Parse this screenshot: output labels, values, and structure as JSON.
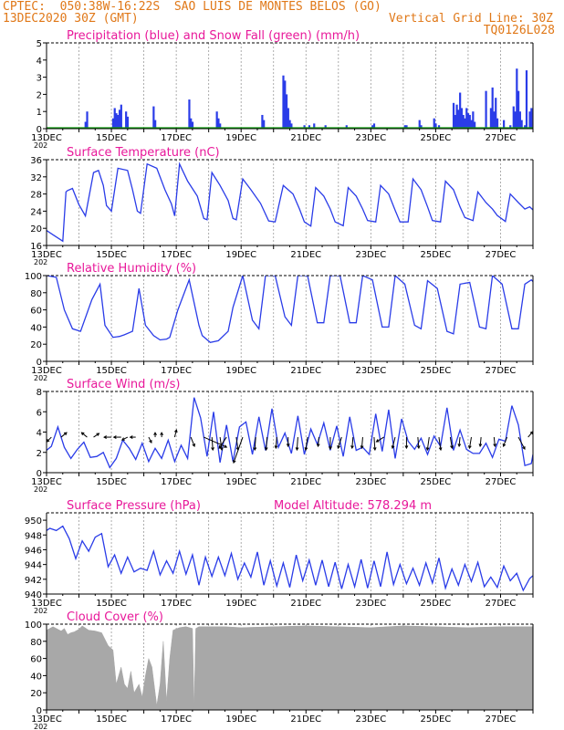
{
  "header": {
    "line1_left": "CPTEC:  050:38W-16:22S  SAO LUIS DE MONTES BELOS (GO)",
    "line2_left": "13DEC2020 30Z (GMT)",
    "line2_right": "Vertical Grid Line: 30Z",
    "line3_right": "TQ0126L028",
    "color": "#e07818"
  },
  "x_ticks": [
    "13DEC",
    "15DEC",
    "17DEC",
    "19DEC",
    "21DEC",
    "23DEC",
    "25DEC",
    "27DEC"
  ],
  "year_stub": "202",
  "colors": {
    "title": "#e8189a",
    "line": "#2a3ce8",
    "snow": "#10a010",
    "cloud": "#a8a8a8",
    "grid": "#9a9a9a"
  },
  "chart_data": [
    {
      "type": "bar",
      "title": "Precipitation (blue) and Snow Fall (green) (mm/h)",
      "ylim": [
        0,
        5
      ],
      "yticks": [
        "0",
        "1",
        "2",
        "3",
        "4",
        "5"
      ],
      "x_unit": "days since 13DEC2020 00Z",
      "series": [
        {
          "name": "Precipitation",
          "x": [
            1.2,
            1.25,
            2.05,
            2.1,
            2.15,
            2.2,
            2.25,
            2.3,
            2.45,
            2.5,
            3.3,
            3.35,
            4.4,
            4.45,
            4.5,
            5.25,
            5.3,
            5.35,
            6.65,
            6.7,
            7.3,
            7.35,
            7.4,
            7.45,
            7.5,
            7.55,
            7.95,
            8.1,
            8.25,
            8.6,
            9.25,
            10.05,
            10.1,
            11.05,
            11.1,
            11.5,
            11.55,
            11.95,
            12.0,
            12.1,
            12.55,
            12.6,
            12.65,
            12.7,
            12.75,
            12.8,
            12.85,
            12.9,
            12.95,
            13.0,
            13.05,
            13.1,
            13.15,
            13.2,
            13.55,
            13.7,
            13.75,
            13.8,
            13.85,
            13.9,
            14.1,
            14.3,
            14.4,
            14.45,
            14.5,
            14.55,
            14.6,
            14.65,
            14.75,
            14.8,
            14.9,
            14.95
          ],
          "values": [
            0.4,
            1.0,
            0.6,
            1.2,
            0.9,
            0.8,
            1.1,
            1.4,
            1.0,
            0.7,
            1.3,
            0.5,
            1.7,
            0.6,
            0.4,
            1.0,
            0.6,
            0.3,
            0.8,
            0.5,
            3.1,
            2.8,
            2.0,
            1.2,
            0.5,
            0.3,
            0.2,
            0.2,
            0.3,
            0.2,
            0.2,
            0.2,
            0.3,
            0.2,
            0.2,
            0.5,
            0.2,
            0.6,
            0.3,
            0.2,
            1.5,
            0.8,
            1.4,
            1.1,
            2.1,
            1.2,
            0.8,
            0.6,
            1.2,
            0.9,
            0.8,
            0.5,
            1.0,
            0.4,
            2.2,
            1.2,
            2.4,
            1.0,
            1.8,
            0.6,
            0.5,
            0.2,
            1.3,
            1.0,
            3.5,
            2.2,
            1.0,
            0.5,
            0.2,
            3.4,
            1.0,
            1.2
          ]
        },
        {
          "name": "Snow Fall",
          "x": [
            0,
            15
          ],
          "values": [
            0,
            0
          ]
        }
      ]
    },
    {
      "type": "line",
      "title": "Surface Temperature (nC)",
      "ylim": [
        16,
        36
      ],
      "yticks": [
        "16",
        "20",
        "24",
        "28",
        "32",
        "36"
      ],
      "x": [
        0,
        0.2,
        0.4,
        0.5,
        0.6,
        0.65,
        0.8,
        1.0,
        1.2,
        1.45,
        1.6,
        1.75,
        1.85,
        2.0,
        2.2,
        2.5,
        2.65,
        2.8,
        2.9,
        3.1,
        3.4,
        3.65,
        3.85,
        3.95,
        4.1,
        4.35,
        4.65,
        4.85,
        4.95,
        5.1,
        5.35,
        5.6,
        5.75,
        5.85,
        6.05,
        6.3,
        6.6,
        6.85,
        7.05,
        7.3,
        7.6,
        7.8,
        7.95,
        8.15,
        8.3,
        8.55,
        8.75,
        8.9,
        9.15,
        9.3,
        9.55,
        9.75,
        9.9,
        10.15,
        10.3,
        10.55,
        10.75,
        10.9,
        11.15,
        11.3,
        11.55,
        11.75,
        11.9,
        12.15,
        12.3,
        12.55,
        12.75,
        12.9,
        13.15,
        13.3,
        13.55,
        13.75,
        13.9,
        14.15,
        14.3,
        14.55,
        14.75,
        14.9,
        15.0
      ],
      "values": [
        19.5,
        18.5,
        17.5,
        17,
        28.5,
        28.8,
        29.3,
        25.5,
        22.9,
        33,
        33.5,
        30,
        25.3,
        24,
        34,
        33.5,
        29,
        24,
        23.5,
        35,
        34,
        29,
        25.7,
        22.9,
        35,
        31,
        27.5,
        22.3,
        22,
        33,
        30,
        26.5,
        22.3,
        22,
        31.5,
        29,
        25.8,
        21.7,
        21.5,
        30,
        28,
        24.5,
        21.5,
        20.5,
        29.5,
        27.5,
        24.5,
        21.5,
        20.6,
        29.5,
        27.5,
        24.5,
        21.8,
        21.5,
        30,
        28,
        24.2,
        21.5,
        21.5,
        31.5,
        29,
        25,
        21.8,
        21.5,
        31,
        29,
        25,
        22.5,
        21.8,
        28.5,
        26,
        24.5,
        23,
        21.6,
        28,
        26,
        24.5,
        25,
        24.3
      ]
    },
    {
      "type": "line",
      "title": "Relative Humidity (%)",
      "ylim": [
        0,
        100
      ],
      "yticks": [
        "0",
        "20",
        "40",
        "60",
        "80",
        "100"
      ],
      "x": [
        0,
        0.3,
        0.55,
        0.8,
        1.05,
        1.4,
        1.65,
        1.8,
        2.05,
        2.25,
        2.4,
        2.65,
        2.85,
        3.05,
        3.3,
        3.5,
        3.7,
        3.8,
        4.05,
        4.4,
        4.7,
        4.8,
        5.05,
        5.3,
        5.6,
        5.75,
        6.05,
        6.35,
        6.55,
        6.75,
        7.05,
        7.35,
        7.55,
        7.75,
        8.05,
        8.35,
        8.55,
        8.75,
        9.05,
        9.35,
        9.55,
        9.75,
        10.05,
        10.35,
        10.55,
        10.75,
        11.05,
        11.35,
        11.55,
        11.75,
        12.05,
        12.35,
        12.55,
        12.75,
        13.05,
        13.35,
        13.55,
        13.75,
        14.05,
        14.35,
        14.55,
        14.75,
        14.95,
        15.0
      ],
      "values": [
        100,
        98,
        60,
        38,
        35,
        72,
        90,
        42,
        28,
        29,
        31,
        35,
        85,
        42,
        30,
        25,
        26,
        28,
        60,
        95,
        42,
        30,
        22,
        24,
        35,
        63,
        100,
        48,
        38,
        100,
        100,
        52,
        42,
        100,
        100,
        45,
        45,
        100,
        100,
        45,
        45,
        100,
        95,
        40,
        40,
        100,
        90,
        42,
        38,
        94,
        85,
        35,
        32,
        90,
        92,
        40,
        38,
        100,
        90,
        38,
        38,
        90,
        95,
        93
      ]
    },
    {
      "type": "line",
      "title": "Surface Wind (m/s)",
      "ylim": [
        0,
        8
      ],
      "yticks": [
        "0",
        "2",
        "4",
        "6",
        "8"
      ],
      "x": [
        0,
        0.15,
        0.35,
        0.55,
        0.75,
        0.95,
        1.15,
        1.35,
        1.55,
        1.75,
        1.95,
        2.15,
        2.35,
        2.55,
        2.75,
        2.95,
        3.15,
        3.35,
        3.55,
        3.75,
        3.95,
        4.15,
        4.35,
        4.55,
        4.75,
        4.95,
        5.15,
        5.35,
        5.55,
        5.75,
        5.95,
        6.15,
        6.35,
        6.55,
        6.75,
        6.95,
        7.15,
        7.35,
        7.55,
        7.75,
        7.95,
        8.15,
        8.35,
        8.55,
        8.75,
        8.95,
        9.15,
        9.35,
        9.55,
        9.75,
        9.95,
        10.15,
        10.35,
        10.55,
        10.75,
        10.95,
        11.15,
        11.35,
        11.55,
        11.75,
        11.95,
        12.15,
        12.35,
        12.55,
        12.75,
        12.95,
        13.15,
        13.35,
        13.55,
        13.75,
        13.95,
        14.15,
        14.35,
        14.55,
        14.75,
        14.95,
        15.0
      ],
      "values": [
        2.2,
        2.6,
        4.5,
        2.5,
        1.4,
        2.3,
        3.0,
        1.5,
        1.6,
        2.0,
        0.5,
        1.4,
        3.2,
        2.4,
        1.3,
        2.9,
        1.1,
        2.4,
        1.4,
        3.2,
        1.1,
        2.7,
        1.4,
        7.4,
        5.4,
        1.6,
        6.0,
        1.0,
        4.7,
        1.1,
        4.5,
        5.0,
        1.8,
        5.5,
        2.2,
        6.3,
        2.5,
        3.9,
        1.9,
        5.6,
        1.8,
        4.3,
        2.8,
        4.9,
        2.2,
        4.6,
        1.6,
        5.5,
        2.2,
        2.5,
        1.8,
        5.8,
        2.1,
        6.2,
        1.4,
        5.3,
        3.1,
        2.3,
        3.4,
        1.8,
        3.6,
        2.6,
        6.4,
        2.2,
        4.2,
        2.3,
        1.9,
        1.9,
        2.9,
        1.5,
        3.3,
        3.1,
        6.6,
        4.7,
        0.7,
        0.9,
        1.8
      ],
      "arrows": [
        {
          "x": 0.15,
          "dx": -5,
          "dy": 5
        },
        {
          "x": 0.45,
          "dx": 6,
          "dy": -5
        },
        {
          "x": 1.25,
          "dx": -6,
          "dy": -5
        },
        {
          "x": 1.45,
          "dx": 6,
          "dy": -4
        },
        {
          "x": 2.0,
          "dx": -8,
          "dy": 0
        },
        {
          "x": 2.3,
          "dx": -8,
          "dy": 0
        },
        {
          "x": 2.5,
          "dx": -6,
          "dy": 3
        },
        {
          "x": 2.75,
          "dx": -6,
          "dy": 0
        },
        {
          "x": 3.15,
          "dx": 3,
          "dy": 6
        },
        {
          "x": 3.35,
          "dx": 0,
          "dy": -5
        },
        {
          "x": 3.55,
          "dx": 0,
          "dy": -5
        },
        {
          "x": 3.95,
          "dx": 2,
          "dy": -8
        },
        {
          "x": 4.45,
          "dx": 4,
          "dy": 10
        },
        {
          "x": 4.85,
          "dx": 25,
          "dy": 11
        },
        {
          "x": 5.1,
          "dx": 1,
          "dy": 14
        },
        {
          "x": 5.35,
          "dx": 2,
          "dy": 14
        },
        {
          "x": 5.55,
          "dx": -8,
          "dy": 12
        },
        {
          "x": 5.85,
          "dx": 2,
          "dy": 14
        },
        {
          "x": 6.05,
          "dx": -10,
          "dy": 28
        },
        {
          "x": 6.45,
          "dx": -1,
          "dy": 14
        },
        {
          "x": 6.8,
          "dx": -1,
          "dy": 14
        },
        {
          "x": 7.1,
          "dx": -1,
          "dy": 12
        },
        {
          "x": 7.45,
          "dx": 0,
          "dy": 10
        },
        {
          "x": 7.75,
          "dx": -1,
          "dy": 14
        },
        {
          "x": 8.05,
          "dx": -2,
          "dy": 14
        },
        {
          "x": 8.4,
          "dx": -1,
          "dy": 10
        },
        {
          "x": 8.75,
          "dx": 0,
          "dy": 13
        },
        {
          "x": 9.1,
          "dx": -4,
          "dy": 12
        },
        {
          "x": 9.45,
          "dx": -1,
          "dy": 12
        },
        {
          "x": 9.75,
          "dx": -1,
          "dy": 12
        },
        {
          "x": 10.1,
          "dx": 1,
          "dy": 14
        },
        {
          "x": 10.4,
          "dx": -8,
          "dy": 5
        },
        {
          "x": 10.75,
          "dx": -3,
          "dy": 12
        },
        {
          "x": 11.1,
          "dx": 0,
          "dy": 12
        },
        {
          "x": 11.45,
          "dx": 1,
          "dy": 12
        },
        {
          "x": 11.8,
          "dx": -2,
          "dy": 14
        },
        {
          "x": 12.1,
          "dx": 2,
          "dy": 14
        },
        {
          "x": 12.45,
          "dx": 2,
          "dy": 12
        },
        {
          "x": 12.75,
          "dx": -1,
          "dy": 10
        },
        {
          "x": 13.1,
          "dx": -2,
          "dy": 12
        },
        {
          "x": 13.4,
          "dx": -1,
          "dy": 10
        },
        {
          "x": 13.8,
          "dx": 1,
          "dy": 10
        },
        {
          "x": 14.2,
          "dx": -4,
          "dy": 10
        },
        {
          "x": 14.55,
          "dx": 7,
          "dy": 13
        },
        {
          "x": 14.85,
          "dx": 5,
          "dy": -6
        }
      ]
    },
    {
      "type": "line",
      "title": "Surface Pressure (hPa)",
      "annotation": "Model Altitude: 578.294 m",
      "ylim": [
        940,
        951
      ],
      "yticks": [
        "940",
        "942",
        "944",
        "946",
        "948",
        "950"
      ],
      "x": [
        0,
        0.1,
        0.3,
        0.5,
        0.7,
        0.9,
        1.1,
        1.3,
        1.5,
        1.7,
        1.9,
        2.1,
        2.3,
        2.5,
        2.7,
        2.9,
        3.1,
        3.3,
        3.5,
        3.7,
        3.9,
        4.1,
        4.3,
        4.5,
        4.7,
        4.9,
        5.1,
        5.3,
        5.5,
        5.7,
        5.9,
        6.1,
        6.3,
        6.5,
        6.7,
        6.9,
        7.1,
        7.3,
        7.5,
        7.7,
        7.9,
        8.1,
        8.3,
        8.5,
        8.7,
        8.9,
        9.1,
        9.3,
        9.5,
        9.7,
        9.9,
        10.1,
        10.3,
        10.5,
        10.7,
        10.9,
        11.1,
        11.3,
        11.5,
        11.7,
        11.9,
        12.1,
        12.3,
        12.5,
        12.7,
        12.9,
        13.1,
        13.3,
        13.5,
        13.7,
        13.9,
        14.1,
        14.3,
        14.5,
        14.7,
        14.9,
        15.0
      ],
      "values": [
        948.6,
        948.9,
        948.6,
        949.2,
        947.5,
        944.8,
        947.2,
        945.8,
        947.7,
        948.2,
        943.7,
        945.3,
        942.8,
        945,
        943,
        943.5,
        943.2,
        945.8,
        942.6,
        944.5,
        942.8,
        945.8,
        942.7,
        945.3,
        941.2,
        945,
        942.4,
        945,
        942.5,
        945.5,
        942,
        944.2,
        942.3,
        945.7,
        941.2,
        944.5,
        941.1,
        944.2,
        940.9,
        945.3,
        941.8,
        944.6,
        941.2,
        944.6,
        941,
        944.3,
        940.7,
        944,
        941,
        944.7,
        940.8,
        944.5,
        941,
        945.7,
        941.3,
        944,
        941.4,
        943.5,
        941.2,
        944.2,
        941.5,
        944.9,
        940.8,
        943.4,
        941.2,
        944,
        941.7,
        944.3,
        941,
        942.3,
        940.9,
        943.8,
        941.8,
        942.8,
        940.5,
        942.1,
        942.5
      ]
    },
    {
      "type": "area",
      "title": "Cloud Cover (%)",
      "ylim": [
        0,
        100
      ],
      "yticks": [
        "0",
        "20",
        "40",
        "60",
        "80",
        "100"
      ],
      "x": [
        0,
        0.2,
        0.45,
        0.55,
        0.65,
        0.75,
        0.85,
        1.0,
        1.1,
        1.3,
        1.5,
        1.7,
        1.9,
        2.05,
        2.15,
        2.3,
        2.4,
        2.5,
        2.6,
        2.7,
        2.85,
        2.95,
        3.05,
        3.15,
        3.25,
        3.4,
        3.5,
        3.6,
        3.7,
        3.8,
        3.9,
        4.1,
        4.3,
        4.5,
        4.55,
        4.6,
        4.7,
        4.9,
        5.5,
        6.0,
        7.0,
        8.0,
        9.0,
        10.0,
        11.0,
        12.0,
        13.0,
        14.0,
        15.0
      ],
      "values": [
        93,
        97,
        92,
        95,
        88,
        90,
        91,
        94,
        98,
        93,
        92,
        90,
        75,
        70,
        30,
        50,
        30,
        25,
        45,
        20,
        30,
        15,
        40,
        60,
        50,
        5,
        30,
        80,
        10,
        60,
        93,
        96,
        97,
        95,
        3,
        95,
        97,
        97,
        97,
        96,
        97,
        98,
        97,
        96,
        98,
        97,
        96,
        97,
        97
      ]
    }
  ]
}
